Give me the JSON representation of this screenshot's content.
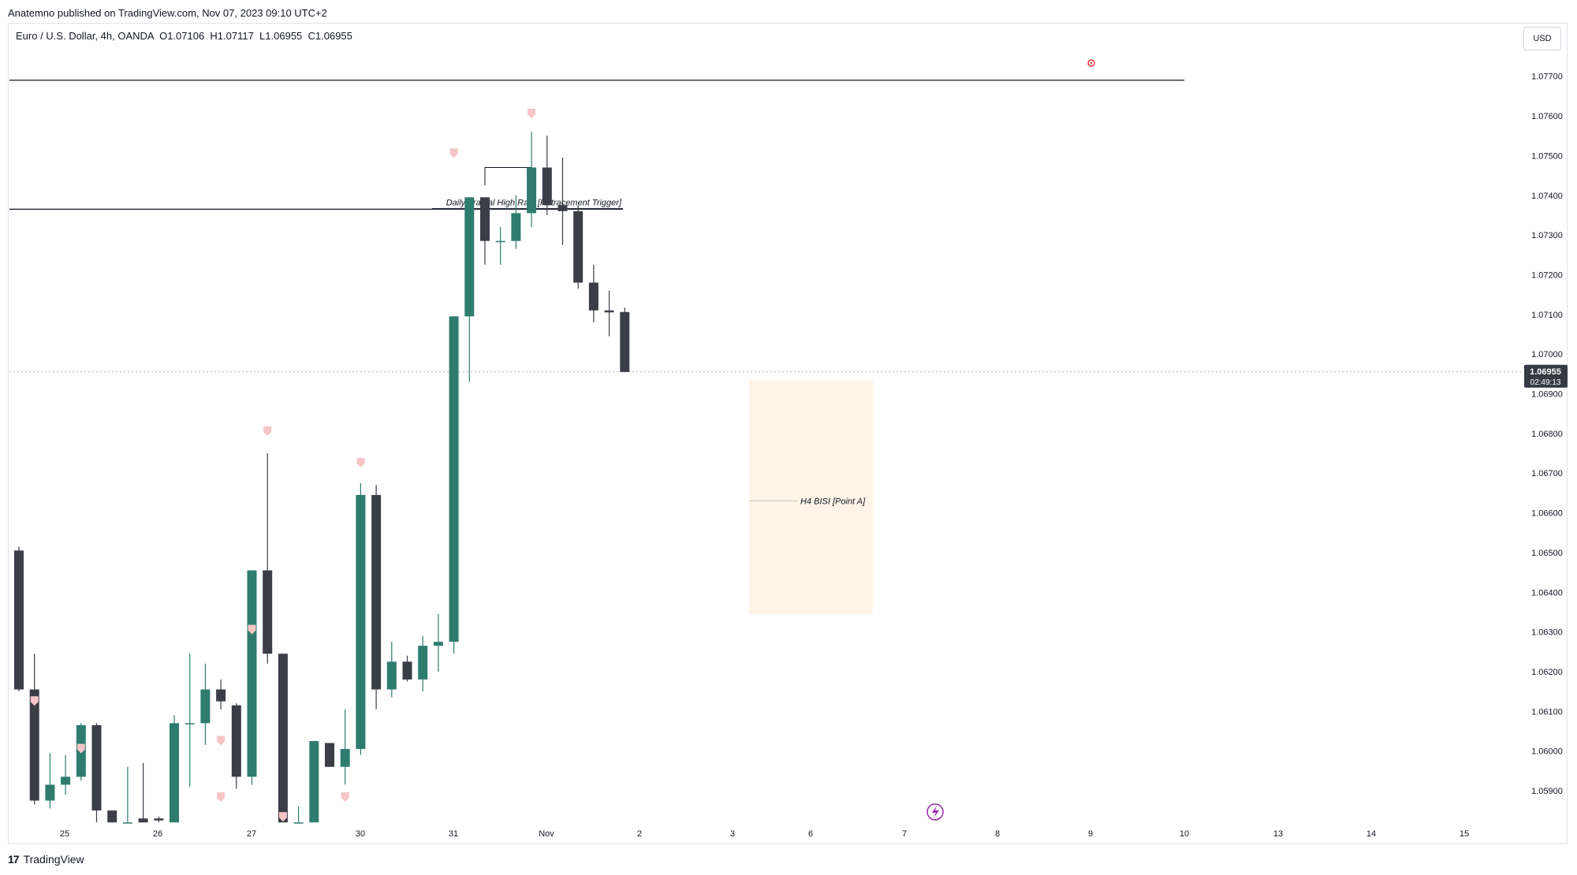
{
  "header": {
    "publisher": "Anatemno published on TradingView.com, Nov 07, 2023 09:10 UTC+2",
    "symbol": "Euro / U.S. Dollar, 4h, OANDA",
    "ohlc": "O1.07106  H1.07117  L1.06955  C1.06955",
    "currency": "USD"
  },
  "footer": {
    "brand": "TradingView",
    "logo_text": "17"
  },
  "colors": {
    "up": "#2e7c6e",
    "down": "#3b3d47",
    "zone": "#fff4e8",
    "marker": "#f7c5c5",
    "price_tag": "#363a45"
  },
  "chart_data": {
    "type": "candlestick",
    "symbol": "Euro / U.S. Dollar",
    "timeframe": "4h",
    "y_axis": {
      "ticks": [
        "1.05900",
        "1.06000",
        "1.06100",
        "1.06200",
        "1.06300",
        "1.06400",
        "1.06500",
        "1.06600",
        "1.06700",
        "1.06800",
        "1.06900",
        "1.07000",
        "1.07100",
        "1.07200",
        "1.07300",
        "1.07400",
        "1.07500",
        "1.07600",
        "1.07700"
      ],
      "range": [
        1.0582,
        1.0777
      ]
    },
    "x_axis": {
      "ticks": [
        "25",
        "26",
        "27",
        "30",
        "31",
        "Nov",
        "2",
        "3",
        "6",
        "7",
        "8",
        "9",
        "10",
        "13",
        "14",
        "15"
      ]
    },
    "last_price": {
      "value": "1.06955",
      "countdown": "02:49:13"
    },
    "candles": [
      {
        "o": 1.06505,
        "h": 1.06515,
        "l": 1.0615,
        "c": 1.06155
      },
      {
        "o": 1.06155,
        "h": 1.06245,
        "l": 1.05865,
        "c": 1.05875
      },
      {
        "o": 1.05875,
        "h": 1.05995,
        "l": 1.05855,
        "c": 1.05915
      },
      {
        "o": 1.05915,
        "h": 1.0599,
        "l": 1.0589,
        "c": 1.05935
      },
      {
        "o": 1.05935,
        "h": 1.0607,
        "l": 1.05925,
        "c": 1.06065
      },
      {
        "o": 1.06065,
        "h": 1.0607,
        "l": 1.0582,
        "c": 1.0585
      },
      {
        "o": 1.0585,
        "h": 1.0585,
        "l": 1.0582,
        "c": 1.0582
      },
      {
        "o": 1.0582,
        "h": 1.0596,
        "l": 1.0582,
        "c": 1.0582
      },
      {
        "o": 1.0583,
        "h": 1.0597,
        "l": 1.0582,
        "c": 1.0582
      },
      {
        "o": 1.0583,
        "h": 1.05835,
        "l": 1.0582,
        "c": 1.05825
      },
      {
        "o": 1.0582,
        "h": 1.0609,
        "l": 1.0582,
        "c": 1.0607
      },
      {
        "o": 1.0607,
        "h": 1.06245,
        "l": 1.0591,
        "c": 1.0607
      },
      {
        "o": 1.0607,
        "h": 1.0622,
        "l": 1.06015,
        "c": 1.06155
      },
      {
        "o": 1.06155,
        "h": 1.0618,
        "l": 1.06105,
        "c": 1.06125
      },
      {
        "o": 1.06115,
        "h": 1.0612,
        "l": 1.05905,
        "c": 1.05935
      },
      {
        "o": 1.05935,
        "h": 1.06455,
        "l": 1.05915,
        "c": 1.06455
      },
      {
        "o": 1.06455,
        "h": 1.0675,
        "l": 1.0622,
        "c": 1.06245
      },
      {
        "o": 1.06245,
        "h": 1.06245,
        "l": 1.0582,
        "c": 1.0582
      },
      {
        "o": 1.0582,
        "h": 1.0586,
        "l": 1.0582,
        "c": 1.0582
      },
      {
        "o": 1.0582,
        "h": 1.06025,
        "l": 1.0582,
        "c": 1.06025
      },
      {
        "o": 1.0602,
        "h": 1.0602,
        "l": 1.0596,
        "c": 1.0596
      },
      {
        "o": 1.0596,
        "h": 1.06105,
        "l": 1.05915,
        "c": 1.06005
      },
      {
        "o": 1.06005,
        "h": 1.06675,
        "l": 1.0599,
        "c": 1.06645
      },
      {
        "o": 1.06645,
        "h": 1.0667,
        "l": 1.06105,
        "c": 1.06155
      },
      {
        "o": 1.06155,
        "h": 1.06275,
        "l": 1.06135,
        "c": 1.06225
      },
      {
        "o": 1.06225,
        "h": 1.0624,
        "l": 1.06175,
        "c": 1.0618
      },
      {
        "o": 1.0618,
        "h": 1.0629,
        "l": 1.0615,
        "c": 1.06265
      },
      {
        "o": 1.06265,
        "h": 1.06345,
        "l": 1.062,
        "c": 1.06275
      },
      {
        "o": 1.06275,
        "h": 1.07095,
        "l": 1.06245,
        "c": 1.07095
      },
      {
        "o": 1.07095,
        "h": 1.07395,
        "l": 1.0693,
        "c": 1.07395
      },
      {
        "o": 1.07395,
        "h": 1.07395,
        "l": 1.07225,
        "c": 1.07285
      },
      {
        "o": 1.07285,
        "h": 1.0732,
        "l": 1.07225,
        "c": 1.07285
      },
      {
        "o": 1.07285,
        "h": 1.074,
        "l": 1.07265,
        "c": 1.07355
      },
      {
        "o": 1.07355,
        "h": 1.0756,
        "l": 1.0732,
        "c": 1.0747
      },
      {
        "o": 1.0747,
        "h": 1.0755,
        "l": 1.0735,
        "c": 1.07375
      },
      {
        "o": 1.07375,
        "h": 1.07495,
        "l": 1.07275,
        "c": 1.0736
      },
      {
        "o": 1.0736,
        "h": 1.07375,
        "l": 1.07165,
        "c": 1.0718
      },
      {
        "o": 1.0718,
        "h": 1.07225,
        "l": 1.0708,
        "c": 1.0711
      },
      {
        "o": 1.0711,
        "h": 1.0716,
        "l": 1.07045,
        "c": 1.07105
      },
      {
        "o": 1.07106,
        "h": 1.07117,
        "l": 1.06955,
        "c": 1.06955
      }
    ],
    "annotations": [
      {
        "type": "hline",
        "text": "",
        "price": 1.0769
      },
      {
        "type": "hline",
        "text": "Daily Fracral High Raid [Retracement Trigger]",
        "price": 1.07365
      },
      {
        "type": "zone",
        "text": "H4 BISI [Point A]",
        "price_top": 1.06935,
        "price_bottom": 1.06345
      }
    ]
  }
}
